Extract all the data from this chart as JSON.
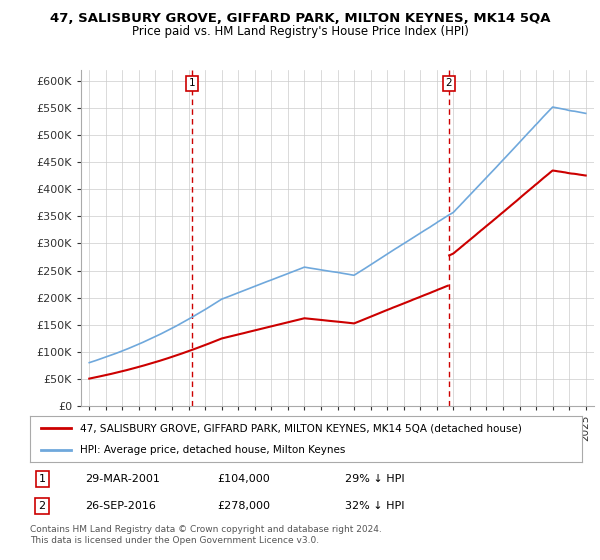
{
  "title": "47, SALISBURY GROVE, GIFFARD PARK, MILTON KEYNES, MK14 5QA",
  "subtitle": "Price paid vs. HM Land Registry's House Price Index (HPI)",
  "ylim": [
    0,
    620000
  ],
  "yticks": [
    0,
    50000,
    100000,
    150000,
    200000,
    250000,
    300000,
    350000,
    400000,
    450000,
    500000,
    550000,
    600000
  ],
  "ytick_labels": [
    "£0",
    "£50K",
    "£100K",
    "£150K",
    "£200K",
    "£250K",
    "£300K",
    "£350K",
    "£400K",
    "£450K",
    "£500K",
    "£550K",
    "£600K"
  ],
  "hpi_color": "#6fa8dc",
  "price_color": "#cc0000",
  "sale1_year": 2001.23,
  "sale1_price": 104000,
  "sale2_year": 2016.73,
  "sale2_price": 278000,
  "legend_line1": "47, SALISBURY GROVE, GIFFARD PARK, MILTON KEYNES, MK14 5QA (detached house)",
  "legend_line2": "HPI: Average price, detached house, Milton Keynes",
  "table_row1": [
    "1",
    "29-MAR-2001",
    "£104,000",
    "29% ↓ HPI"
  ],
  "table_row2": [
    "2",
    "26-SEP-2016",
    "£278,000",
    "32% ↓ HPI"
  ],
  "footnote": "Contains HM Land Registry data © Crown copyright and database right 2024.\nThis data is licensed under the Open Government Licence v3.0.",
  "background_color": "#ffffff",
  "grid_color": "#cccccc"
}
